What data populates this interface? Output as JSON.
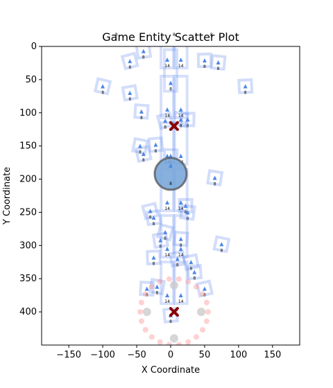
{
  "chart_data": {
    "type": "scatter",
    "title": "Game Entity Scatter Plot",
    "xlabel": "X Coordinate",
    "ylabel": "Y Coordinate",
    "xlim": [
      -190,
      190
    ],
    "ylim": [
      450,
      0
    ],
    "y_inverted": true,
    "grid": false,
    "xticks": [
      -150,
      -100,
      -50,
      0,
      50,
      100,
      150
    ],
    "yticks": [
      0,
      50,
      100,
      150,
      200,
      250,
      300,
      350,
      400
    ],
    "colors": {
      "frame": "#6a8ff0",
      "arrow": "#4a86e8",
      "player": "#7aa7d9",
      "player_edge": "#555555",
      "enemy": "#8b0000",
      "ring": "#ff9999",
      "grey": "#cccccc"
    },
    "series": [
      {
        "kind": "small-frames",
        "points": [
          {
            "x": -60,
            "y": 22,
            "label": "8"
          },
          {
            "x": -40,
            "y": 7,
            "label": "8"
          },
          {
            "x": 50,
            "y": 21,
            "label": "8"
          },
          {
            "x": 70,
            "y": 24,
            "label": "8"
          },
          {
            "x": -100,
            "y": 60,
            "label": "8"
          },
          {
            "x": -60,
            "y": 70,
            "label": "8"
          },
          {
            "x": 110,
            "y": 60,
            "label": "8"
          },
          {
            "x": -43,
            "y": 98,
            "label": "8"
          },
          {
            "x": -45,
            "y": 150,
            "label": "8"
          },
          {
            "x": -40,
            "y": 162,
            "label": "8"
          },
          {
            "x": -22,
            "y": 148,
            "label": "8"
          },
          {
            "x": 0,
            "y": 165,
            "label": "8"
          },
          {
            "x": 65,
            "y": 198,
            "label": "8"
          },
          {
            "x": -30,
            "y": 248,
            "label": "8"
          },
          {
            "x": -25,
            "y": 258,
            "label": "8"
          },
          {
            "x": 22,
            "y": 240,
            "label": "8"
          },
          {
            "x": 25,
            "y": 250,
            "label": "8"
          },
          {
            "x": -8,
            "y": 280,
            "label": "8"
          },
          {
            "x": -15,
            "y": 292,
            "label": "8"
          },
          {
            "x": -25,
            "y": 318,
            "label": "8"
          },
          {
            "x": 15,
            "y": 290,
            "label": "8"
          },
          {
            "x": 75,
            "y": 298,
            "label": "8"
          },
          {
            "x": 30,
            "y": 325,
            "label": "8"
          },
          {
            "x": 35,
            "y": 340,
            "label": "8"
          },
          {
            "x": -35,
            "y": 365,
            "label": "8"
          },
          {
            "x": -20,
            "y": 362,
            "label": "8"
          },
          {
            "x": 50,
            "y": 365,
            "label": "8"
          },
          {
            "x": 0,
            "y": 405,
            "label": "8"
          },
          {
            "x": 25,
            "y": 110,
            "label": "8"
          },
          {
            "x": 15,
            "y": 110,
            "label": "8"
          },
          {
            "x": -8,
            "y": 112,
            "label": "8"
          },
          {
            "x": 10,
            "y": 320,
            "label": "8"
          }
        ]
      },
      {
        "kind": "tall-frames",
        "points": [
          {
            "x": -5,
            "y": 20,
            "label": "14"
          },
          {
            "x": 15,
            "y": 20,
            "label": "14"
          },
          {
            "x": 0,
            "y": 55,
            "label": "8"
          },
          {
            "x": -5,
            "y": 95,
            "label": "14"
          },
          {
            "x": 15,
            "y": 95,
            "label": "14"
          },
          {
            "x": -5,
            "y": 165,
            "label": "14"
          },
          {
            "x": 15,
            "y": 165,
            "label": "14"
          },
          {
            "x": -5,
            "y": 235,
            "label": "14"
          },
          {
            "x": 15,
            "y": 235,
            "label": "14"
          },
          {
            "x": -5,
            "y": 305,
            "label": "14"
          },
          {
            "x": 15,
            "y": 305,
            "label": "14"
          },
          {
            "x": -5,
            "y": 375,
            "label": "14"
          },
          {
            "x": 15,
            "y": 375,
            "label": "14"
          }
        ]
      },
      {
        "kind": "player",
        "points": [
          {
            "x": 0,
            "y": 192,
            "label": "8"
          }
        ]
      },
      {
        "kind": "enemy",
        "points": [
          {
            "x": 5,
            "y": 120
          },
          {
            "x": 5,
            "y": 400
          }
        ]
      },
      {
        "kind": "grey-markers",
        "points": [
          {
            "x": 5,
            "y": 360
          },
          {
            "x": -35,
            "y": 400
          },
          {
            "x": 45,
            "y": 400
          },
          {
            "x": 5,
            "y": 440
          }
        ]
      },
      {
        "kind": "ring",
        "center": {
          "x": 5,
          "y": 400
        },
        "radius": 50,
        "count": 22
      }
    ],
    "top_annotations": [
      {
        "x": -80,
        "label": "8"
      },
      {
        "x": 5,
        "label": "8"
      },
      {
        "x": 60,
        "label": "8"
      }
    ]
  }
}
